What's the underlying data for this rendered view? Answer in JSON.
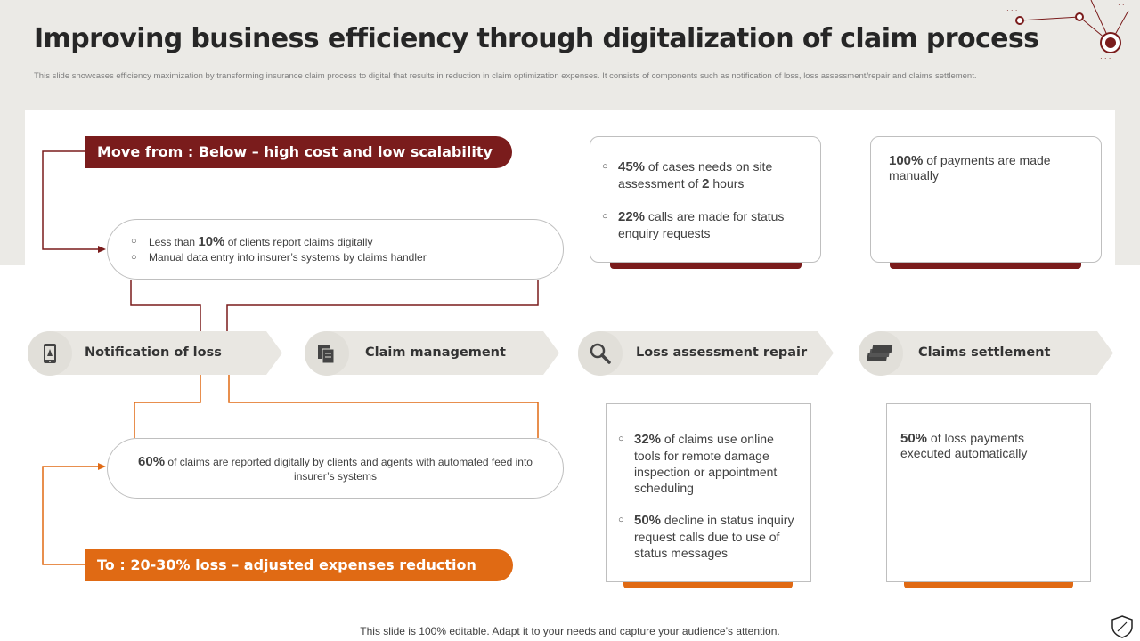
{
  "title": "Improving business efficiency through digitalization of claim process",
  "subtitle": "This slide showcases efficiency maximization by transforming insurance claim process to digital that results in reduction in claim optimization expenses. It consists of components such as notification of loss, loss assessment/repair and claims settlement.",
  "colors": {
    "dark_red": "#7a1c1c",
    "orange": "#e06a14",
    "band": "#ebeae6",
    "stage": "#e9e7e2"
  },
  "move_from": {
    "prefix": "Move from :",
    "text": "Below – high cost and low scalability",
    "points": [
      {
        "pre": "Less than ",
        "value": "10%",
        "post": " of clients report  claims digitally"
      },
      {
        "text": "Manual data entry into insurer’s systems by claims handler"
      }
    ]
  },
  "move_to": {
    "prefix": "To :",
    "text": "20-30%  loss – adjusted expenses reduction",
    "value": "60%",
    "text_rest": " of claims are reported digitally by clients and agents with automated feed into insurer’s systems"
  },
  "stages": [
    {
      "label": "Notification of loss",
      "icon": "phone-alert-icon"
    },
    {
      "label": "Claim management",
      "icon": "documents-icon"
    },
    {
      "label": "Loss assessment repair",
      "icon": "magnifier-icon"
    },
    {
      "label": "Claims settlement",
      "icon": "money-stack-icon"
    }
  ],
  "cards_top": [
    {
      "points": [
        {
          "value": "45%",
          "text": " of cases needs on site assessment of ",
          "value2": "2",
          "text2": " hours"
        },
        {
          "value": "22%",
          "text": " calls are made for status enquiry requests"
        }
      ]
    },
    {
      "value": "100%",
      "text": " of payments are made manually"
    }
  ],
  "cards_bottom": [
    {
      "points": [
        {
          "value": "32%",
          "text": " of claims use online tools for remote damage inspection or appointment scheduling"
        },
        {
          "value": "50%",
          "text": " decline in status inquiry request calls due to use of status messages"
        }
      ]
    },
    {
      "value": "50%",
      "text": " of loss payments executed automatically"
    }
  ],
  "footer": "This slide is 100% editable. Adapt it to your needs and capture your audience’s attention."
}
